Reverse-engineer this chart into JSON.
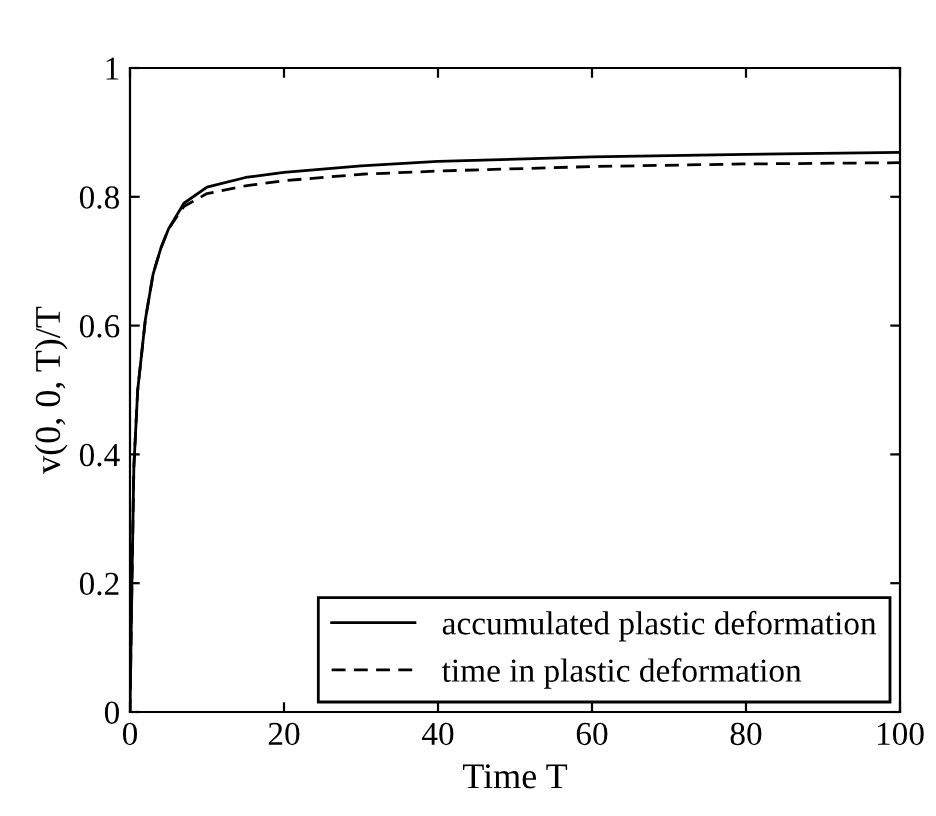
{
  "chart_data": {
    "type": "line",
    "xlabel": "Time T",
    "ylabel": "v(0, 0, T)/T",
    "xlim": [
      0,
      100
    ],
    "ylim": [
      0,
      1
    ],
    "xticks": [
      0,
      20,
      40,
      60,
      80,
      100
    ],
    "yticks": [
      0,
      0.2,
      0.4,
      0.6,
      0.8,
      1
    ],
    "grid": false,
    "legend": "bottom right",
    "series": [
      {
        "name": "accumulated plastic deformation",
        "color": "#000000",
        "line_style": "solid",
        "x": [
          0,
          0.25,
          0.5,
          1,
          2,
          3,
          4,
          5,
          7,
          10,
          15,
          20,
          30,
          40,
          60,
          80,
          100
        ],
        "values": [
          0,
          0.2,
          0.38,
          0.5,
          0.61,
          0.68,
          0.72,
          0.75,
          0.79,
          0.815,
          0.83,
          0.838,
          0.848,
          0.855,
          0.862,
          0.866,
          0.869
        ]
      },
      {
        "name": "time in plastic deformation",
        "color": "#000000",
        "line_style": "dashed",
        "x": [
          0,
          0.25,
          0.5,
          1,
          2,
          3,
          4,
          5,
          7,
          10,
          15,
          20,
          30,
          40,
          60,
          80,
          100
        ],
        "values": [
          0,
          0.2,
          0.38,
          0.5,
          0.61,
          0.68,
          0.72,
          0.75,
          0.785,
          0.805,
          0.817,
          0.825,
          0.835,
          0.84,
          0.847,
          0.851,
          0.853
        ]
      }
    ]
  }
}
